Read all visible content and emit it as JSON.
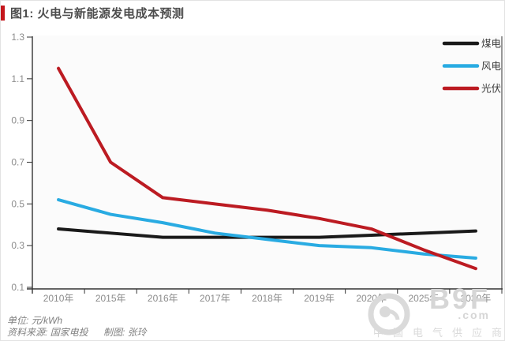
{
  "title": "图1: 火电与新能源发电成本预测",
  "chart_data": {
    "type": "line",
    "title": "图1: 火电与新能源发电成本预测",
    "categories": [
      "2010年",
      "2015年",
      "2016年",
      "2017年",
      "2018年",
      "2019年",
      "2020年",
      "2025年",
      "2030年"
    ],
    "series": [
      {
        "name": "煤电",
        "color": "#1a1a1a",
        "values": [
          0.38,
          0.36,
          0.34,
          0.34,
          0.34,
          0.34,
          0.35,
          0.36,
          0.37
        ]
      },
      {
        "name": "风电",
        "color": "#29abe2",
        "values": [
          0.52,
          0.45,
          0.41,
          0.36,
          0.33,
          0.3,
          0.29,
          0.26,
          0.24
        ]
      },
      {
        "name": "光伏",
        "color": "#bc1b22",
        "values": [
          1.15,
          0.7,
          0.53,
          0.5,
          0.47,
          0.43,
          0.38,
          0.28,
          0.19
        ]
      }
    ],
    "ylim": [
      0.1,
      1.3
    ],
    "yticks": [
      "1.3",
      "1.1",
      "0.9",
      "0.7",
      "0.5",
      "0.3",
      "0.1"
    ],
    "unit": "元/kWh",
    "legend_position": "top-right",
    "grid": false
  },
  "footer": {
    "unit": "单位: 元/kWh",
    "source": "资料来源: 国家电投",
    "credit": "制图: 张玲"
  },
  "watermark": {
    "brand": "B9F",
    "suffix": ".com",
    "tagline": "中国电气供应商"
  },
  "colors": {
    "accent": "#c4161c",
    "axis": "#333333",
    "tick_label": "#8c8c8c",
    "title": "#4d4d4d",
    "footer_text": "#808080",
    "watermark": "#d9d9d9",
    "plot_bg": "#fbfbfb"
  }
}
